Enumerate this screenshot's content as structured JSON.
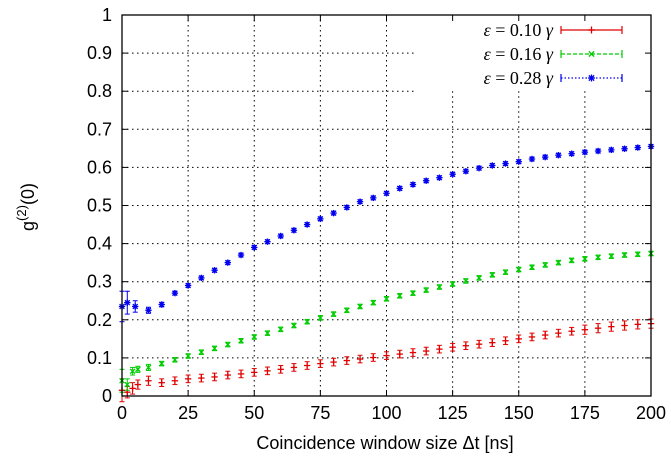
{
  "chart_data": {
    "type": "scatter",
    "xlabel": "Coincidence window size Δt [ns]",
    "ylabel_prefix": "g",
    "ylabel_sup": "(2)",
    "ylabel_suffix": "(0)",
    "xlim": [
      0,
      200
    ],
    "ylim": [
      0,
      1
    ],
    "xticks": [
      "0",
      "25",
      "50",
      "75",
      "100",
      "125",
      "150",
      "175",
      "200"
    ],
    "yticks": [
      "0",
      "0.1",
      "0.2",
      "0.3",
      "0.4",
      "0.5",
      "0.6",
      "0.7",
      "0.8",
      "0.9",
      "1"
    ],
    "grid": true,
    "error_bars": true,
    "legend_position": "top-right",
    "series": [
      {
        "name": "ε = 0.10 γ",
        "legend_parts": [
          "ε",
          " = 0.10 ",
          "γ"
        ],
        "color": "#e00000",
        "marker": "plus",
        "x": [
          0,
          2,
          4,
          6,
          10,
          15,
          20,
          25,
          30,
          35,
          40,
          45,
          50,
          55,
          60,
          65,
          70,
          75,
          80,
          85,
          90,
          95,
          100,
          105,
          110,
          115,
          120,
          125,
          130,
          135,
          140,
          145,
          150,
          155,
          160,
          165,
          170,
          175,
          180,
          185,
          190,
          195,
          200
        ],
        "y": [
          0.015,
          0.01,
          0.02,
          0.03,
          0.04,
          0.035,
          0.04,
          0.045,
          0.047,
          0.05,
          0.055,
          0.058,
          0.062,
          0.066,
          0.07,
          0.075,
          0.08,
          0.085,
          0.089,
          0.093,
          0.097,
          0.101,
          0.106,
          0.11,
          0.114,
          0.118,
          0.123,
          0.128,
          0.132,
          0.136,
          0.14,
          0.145,
          0.15,
          0.155,
          0.16,
          0.165,
          0.17,
          0.174,
          0.178,
          0.182,
          0.185,
          0.188,
          0.19
        ],
        "err": [
          0.03,
          0.015,
          0.015,
          0.012,
          0.012,
          0.01,
          0.01,
          0.01,
          0.01,
          0.01,
          0.01,
          0.01,
          0.01,
          0.01,
          0.01,
          0.01,
          0.01,
          0.01,
          0.01,
          0.01,
          0.01,
          0.01,
          0.01,
          0.01,
          0.01,
          0.01,
          0.01,
          0.01,
          0.01,
          0.01,
          0.01,
          0.01,
          0.01,
          0.01,
          0.01,
          0.01,
          0.01,
          0.012,
          0.012,
          0.012,
          0.012,
          0.012,
          0.012
        ]
      },
      {
        "name": "ε = 0.16 γ",
        "legend_parts": [
          "ε",
          " = 0.16 ",
          "γ"
        ],
        "color": "#00cc00",
        "marker": "cross",
        "x": [
          0,
          2,
          4,
          6,
          10,
          15,
          20,
          25,
          30,
          35,
          40,
          45,
          50,
          55,
          60,
          65,
          70,
          75,
          80,
          85,
          90,
          95,
          100,
          105,
          110,
          115,
          120,
          125,
          130,
          135,
          140,
          145,
          150,
          155,
          160,
          165,
          170,
          175,
          180,
          185,
          190,
          195,
          200
        ],
        "y": [
          0.04,
          0.03,
          0.065,
          0.07,
          0.075,
          0.085,
          0.095,
          0.105,
          0.115,
          0.125,
          0.135,
          0.145,
          0.155,
          0.165,
          0.175,
          0.185,
          0.195,
          0.205,
          0.215,
          0.225,
          0.235,
          0.245,
          0.255,
          0.263,
          0.27,
          0.278,
          0.286,
          0.294,
          0.302,
          0.31,
          0.318,
          0.325,
          0.332,
          0.338,
          0.344,
          0.35,
          0.356,
          0.36,
          0.364,
          0.367,
          0.37,
          0.372,
          0.374
        ],
        "err": [
          0.03,
          0.015,
          0.01,
          0.008,
          0.008,
          0.006,
          0.006,
          0.006,
          0.006,
          0.006,
          0.006,
          0.006,
          0.006,
          0.006,
          0.006,
          0.006,
          0.006,
          0.006,
          0.006,
          0.006,
          0.006,
          0.006,
          0.006,
          0.006,
          0.006,
          0.006,
          0.006,
          0.006,
          0.006,
          0.006,
          0.006,
          0.006,
          0.006,
          0.006,
          0.006,
          0.006,
          0.006,
          0.006,
          0.006,
          0.006,
          0.006,
          0.006,
          0.006
        ]
      },
      {
        "name": "ε = 0.28 γ",
        "legend_parts": [
          "ε",
          " = 0.28 ",
          "γ"
        ],
        "color": "#0000ee",
        "marker": "star",
        "x": [
          0,
          2,
          5,
          10,
          15,
          20,
          25,
          30,
          35,
          40,
          45,
          50,
          55,
          60,
          65,
          70,
          75,
          80,
          85,
          90,
          95,
          100,
          105,
          110,
          115,
          120,
          125,
          130,
          135,
          140,
          145,
          150,
          155,
          160,
          165,
          170,
          175,
          180,
          185,
          190,
          195,
          200
        ],
        "y": [
          0.235,
          0.245,
          0.235,
          0.225,
          0.24,
          0.27,
          0.29,
          0.31,
          0.33,
          0.35,
          0.37,
          0.39,
          0.405,
          0.42,
          0.435,
          0.45,
          0.465,
          0.48,
          0.495,
          0.51,
          0.52,
          0.532,
          0.545,
          0.555,
          0.565,
          0.573,
          0.582,
          0.59,
          0.598,
          0.605,
          0.61,
          0.615,
          0.622,
          0.627,
          0.632,
          0.636,
          0.64,
          0.643,
          0.646,
          0.649,
          0.652,
          0.655
        ],
        "err": [
          0.04,
          0.03,
          0.015,
          0.008,
          0.006,
          0.005,
          0.005,
          0.005,
          0.005,
          0.005,
          0.005,
          0.005,
          0.005,
          0.005,
          0.005,
          0.005,
          0.005,
          0.005,
          0.005,
          0.005,
          0.005,
          0.005,
          0.005,
          0.005,
          0.005,
          0.005,
          0.005,
          0.005,
          0.005,
          0.005,
          0.005,
          0.005,
          0.005,
          0.005,
          0.005,
          0.005,
          0.005,
          0.005,
          0.005,
          0.005,
          0.005,
          0.005
        ]
      }
    ]
  }
}
